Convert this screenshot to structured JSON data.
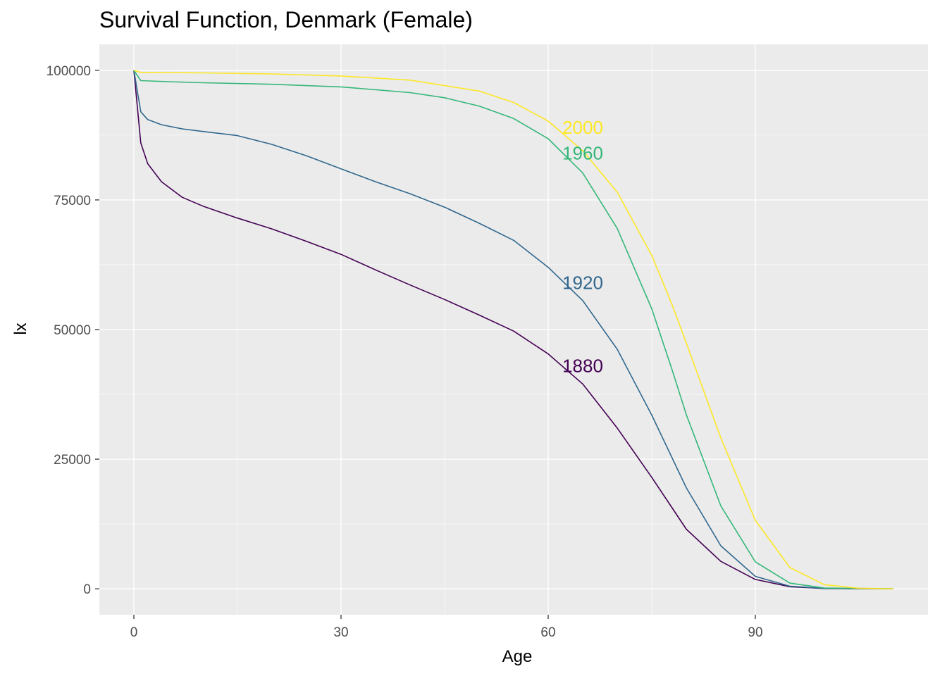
{
  "chart_data": {
    "type": "line",
    "title": "Survival Function, Denmark (Female)",
    "xlabel": "Age",
    "ylabel": "lx",
    "xlim": [
      -5,
      115
    ],
    "ylim": [
      -5000,
      105000
    ],
    "x_ticks": [
      0,
      30,
      60,
      90
    ],
    "y_ticks": [
      0,
      25000,
      50000,
      75000,
      100000
    ],
    "x_tick_labels": [
      "0",
      "30",
      "60",
      "90"
    ],
    "y_tick_labels": [
      "0",
      "25000",
      "50000",
      "75000",
      "100000"
    ],
    "grid": true,
    "legend": "none",
    "panel_color": "#ebebeb",
    "series": [
      {
        "name": "1880",
        "color": "#440154",
        "label_at": [
          65,
          43000
        ],
        "x": [
          0,
          1,
          2,
          4,
          7,
          10,
          15,
          20,
          25,
          30,
          35,
          40,
          45,
          50,
          55,
          60,
          65,
          70,
          75,
          78,
          80,
          85,
          90,
          95,
          100,
          110
        ],
        "y": [
          100000,
          86000,
          82000,
          78500,
          75500,
          73800,
          71500,
          69400,
          67000,
          64500,
          61500,
          58600,
          55800,
          52800,
          49700,
          45300,
          39500,
          31000,
          21500,
          15500,
          11500,
          5300,
          1800,
          400,
          50,
          0
        ]
      },
      {
        "name": "1920",
        "color": "#31688e",
        "label_at": [
          65,
          59000
        ],
        "x": [
          0,
          1,
          2,
          4,
          7,
          10,
          15,
          20,
          25,
          30,
          35,
          40,
          45,
          50,
          55,
          60,
          65,
          70,
          75,
          80,
          85,
          90,
          95,
          100,
          110
        ],
        "y": [
          100000,
          92000,
          90500,
          89500,
          88700,
          88200,
          87400,
          85700,
          83500,
          81000,
          78500,
          76200,
          73600,
          70500,
          67200,
          62000,
          55600,
          46200,
          33500,
          19500,
          8300,
          2400,
          500,
          80,
          0
        ]
      },
      {
        "name": "1960",
        "color": "#35b779",
        "label_at": [
          65,
          84000
        ],
        "x": [
          0,
          1,
          5,
          10,
          20,
          30,
          40,
          45,
          50,
          55,
          60,
          65,
          70,
          75,
          78,
          80,
          85,
          90,
          95,
          100,
          110
        ],
        "y": [
          100000,
          98000,
          97800,
          97600,
          97300,
          96800,
          95700,
          94700,
          93100,
          90700,
          86800,
          80200,
          69500,
          54000,
          42000,
          33600,
          16000,
          5200,
          1100,
          150,
          0
        ]
      },
      {
        "name": "2000",
        "color": "#fde725",
        "label_at": [
          65,
          89000
        ],
        "x": [
          0,
          1,
          10,
          20,
          30,
          40,
          50,
          55,
          60,
          65,
          70,
          75,
          78,
          80,
          85,
          90,
          95,
          100,
          105,
          110
        ],
        "y": [
          100000,
          99600,
          99500,
          99300,
          98900,
          98100,
          96000,
          93800,
          90200,
          84500,
          76500,
          64300,
          54600,
          47400,
          29100,
          13200,
          4100,
          800,
          100,
          0
        ]
      }
    ]
  }
}
